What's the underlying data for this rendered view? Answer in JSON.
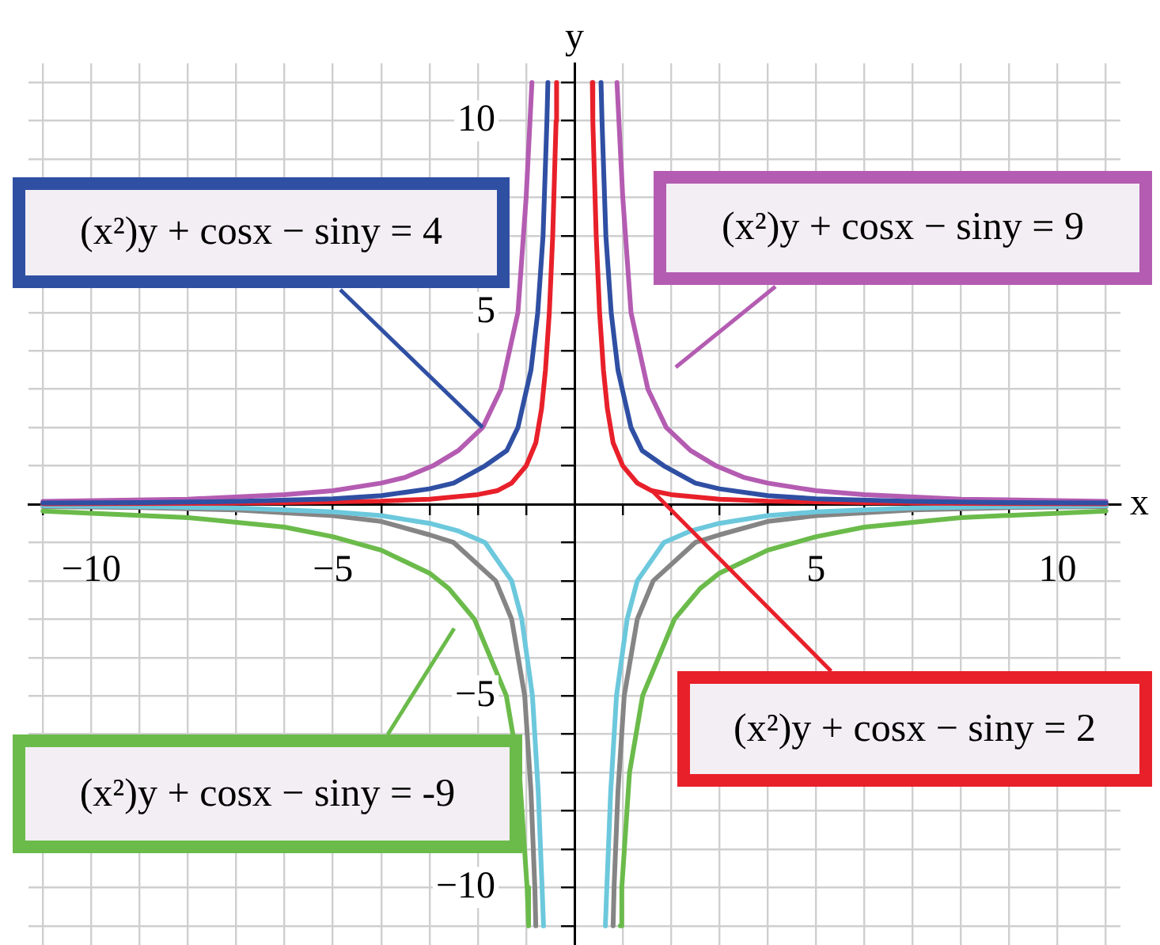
{
  "chart_data": {
    "type": "line",
    "xlabel": "x",
    "ylabel": "y",
    "xlim": [
      -11.3,
      11.3
    ],
    "ylim": [
      -11.5,
      11.5
    ],
    "xticks": [
      {
        "value": -11,
        "label": null
      },
      {
        "value": -10,
        "label": "−10"
      },
      {
        "value": -9,
        "label": null
      },
      {
        "value": -8,
        "label": null
      },
      {
        "value": -7,
        "label": null
      },
      {
        "value": -6,
        "label": null
      },
      {
        "value": -5,
        "label": "−5"
      },
      {
        "value": -4,
        "label": null
      },
      {
        "value": -3,
        "label": null
      },
      {
        "value": -2,
        "label": null
      },
      {
        "value": -1,
        "label": null
      },
      {
        "value": 0,
        "label": null
      },
      {
        "value": 1,
        "label": null
      },
      {
        "value": 2,
        "label": null
      },
      {
        "value": 3,
        "label": null
      },
      {
        "value": 4,
        "label": null
      },
      5,
      {
        "value": 6,
        "label": null
      },
      {
        "value": 7,
        "label": null
      },
      {
        "value": 8,
        "label": null
      },
      {
        "value": 9,
        "label": null
      },
      10,
      {
        "value": 11,
        "label": null
      }
    ],
    "yticks": [
      {
        "value": -11,
        "label": null
      },
      {
        "value": -10,
        "label": "−10"
      },
      {
        "value": -9,
        "label": null
      },
      {
        "value": -8,
        "label": null
      },
      {
        "value": -7,
        "label": null
      },
      {
        "value": -6,
        "label": null
      },
      {
        "value": -5,
        "label": "−5"
      },
      {
        "value": -4,
        "label": null
      },
      {
        "value": -3,
        "label": null
      },
      {
        "value": -2,
        "label": null
      },
      {
        "value": -1,
        "label": null
      },
      {
        "value": 0,
        "label": null
      },
      {
        "value": 1,
        "label": null
      },
      {
        "value": 2,
        "label": null
      },
      {
        "value": 3,
        "label": null
      },
      {
        "value": 4,
        "label": null
      },
      5,
      {
        "value": 6,
        "label": null
      },
      {
        "value": 7,
        "label": null
      },
      {
        "value": 8,
        "label": null
      },
      {
        "value": 9,
        "label": null
      },
      10,
      {
        "value": 11,
        "label": null
      }
    ],
    "grid": true,
    "legend": false,
    "marker": "none",
    "line_style": "solid",
    "series": [
      {
        "color": "#2f4fa3",
        "x": [
          -11,
          -9,
          -7,
          -5,
          -4,
          -3,
          -2.5,
          -1.85,
          -1.4,
          -1.17,
          -0.9,
          -0.76,
          -0.65,
          -0.57,
          -0.55,
          0,
          0.55,
          0.57,
          0.65,
          0.76,
          0.9,
          1.17,
          1.4,
          1.85,
          2.5,
          3,
          4,
          5,
          7,
          9,
          11
        ],
        "values": [
          0.03,
          0.04,
          0.07,
          0.14,
          0.22,
          0.4,
          0.55,
          1,
          1.4,
          2,
          3.5,
          5,
          7,
          10,
          11,
          null,
          11,
          10,
          7,
          5,
          3.5,
          2,
          1.4,
          1,
          0.55,
          0.4,
          0.22,
          0.14,
          0.07,
          0.04,
          0.03
        ]
      },
      {
        "color": "#b45cb2",
        "x": [
          -11,
          -8,
          -6,
          -5,
          -4,
          -3.5,
          -2.93,
          -2.4,
          -1.9,
          -1.52,
          -1.17,
          -1,
          -0.92,
          -0.88,
          0,
          0.88,
          0.92,
          1,
          1.17,
          1.52,
          1.9,
          2.4,
          2.93,
          3.5,
          4,
          5,
          6,
          8,
          11
        ],
        "values": [
          0.07,
          0.13,
          0.25,
          0.35,
          0.55,
          0.7,
          1,
          1.4,
          2,
          3,
          5,
          8,
          10,
          11,
          null,
          11,
          10,
          8,
          5,
          3,
          2,
          1.4,
          1,
          0.7,
          0.55,
          0.35,
          0.25,
          0.13,
          0.07
        ]
      },
      {
        "color": "#6bbb4b",
        "x": [
          -11,
          -8,
          -6,
          -5,
          -4,
          -3,
          -2.6,
          -2.07,
          -1.41,
          -1.14,
          -0.98,
          -0.95,
          0,
          0.95,
          0.98,
          1.14,
          1.41,
          2.07,
          2.6,
          3,
          4,
          5,
          6,
          8,
          11
        ],
        "values": [
          -0.18,
          -0.35,
          -0.6,
          -0.85,
          -1.2,
          -1.8,
          -2.2,
          -3,
          -5,
          -7,
          -10,
          -11,
          null,
          -11,
          -10,
          -7,
          -5,
          -3,
          -2.2,
          -1.8,
          -1.2,
          -0.85,
          -0.6,
          -0.35,
          -0.18
        ]
      },
      {
        "color": "#e8202a",
        "x": [
          -11,
          -8,
          -6,
          -4,
          -3,
          -2,
          -1.6,
          -1.3,
          -1,
          -0.8,
          -0.68,
          -0.6,
          -0.52,
          -0.45,
          -0.38,
          -0.37,
          0,
          0.37,
          0.38,
          0.45,
          0.52,
          0.6,
          0.68,
          0.8,
          1,
          1.3,
          1.6,
          2,
          3,
          4,
          6,
          8,
          11
        ],
        "values": [
          0.01,
          0.02,
          0.04,
          0.08,
          0.13,
          0.25,
          0.35,
          0.55,
          1,
          1.6,
          2.5,
          3.5,
          5,
          7,
          10,
          11,
          null,
          11,
          10,
          7,
          5,
          3.5,
          2.5,
          1.6,
          1,
          0.55,
          0.35,
          0.25,
          0.13,
          0.08,
          0.04,
          0.02,
          0.01
        ]
      },
      {
        "color": "#6cc8dc",
        "x": [
          -11,
          -9,
          -7,
          -5,
          -4,
          -3,
          -2.4,
          -1.85,
          -1.3,
          -1.09,
          -0.87,
          -0.75,
          -0.67,
          -0.64,
          0,
          0.64,
          0.67,
          0.75,
          0.87,
          1.09,
          1.3,
          1.85,
          2.4,
          3,
          4,
          5,
          7,
          9,
          11
        ],
        "values": [
          -0.04,
          -0.06,
          -0.1,
          -0.2,
          -0.3,
          -0.5,
          -0.7,
          -1,
          -2,
          -3,
          -5,
          -7.5,
          -10,
          -11,
          null,
          -11,
          -10,
          -7.5,
          -5,
          -3,
          -2,
          -1,
          -0.7,
          -0.5,
          -0.3,
          -0.2,
          -0.1,
          -0.06,
          -0.04
        ]
      },
      {
        "color": "#858585",
        "x": [
          -11,
          -9,
          -7,
          -5,
          -4,
          -3,
          -2.5,
          -1.63,
          -1.3,
          -1.03,
          -0.9,
          -0.82,
          -0.8,
          0,
          0.8,
          0.82,
          0.9,
          1.03,
          1.3,
          1.63,
          2.5,
          3,
          4,
          5,
          7,
          9,
          11
        ],
        "values": [
          -0.06,
          -0.09,
          -0.15,
          -0.3,
          -0.45,
          -0.8,
          -1,
          -2,
          -3,
          -5,
          -7.5,
          -10,
          -11,
          null,
          -11,
          -10,
          -7.5,
          -5,
          -3,
          -2,
          -1,
          -0.8,
          -0.45,
          -0.3,
          -0.15,
          -0.09,
          -0.06
        ]
      }
    ],
    "annotations": [
      {
        "text": "(x²)y + cosx − siny = 4",
        "x": -1.9,
        "y": 2
      },
      "(x²)y + cosx − siny = 9",
      "(x²)y + cosx − siny = -9",
      {
        "text": "(x²)y + cosx − siny = 2",
        "x": 1.6,
        "y": 0.35
      }
    ]
  }
}
